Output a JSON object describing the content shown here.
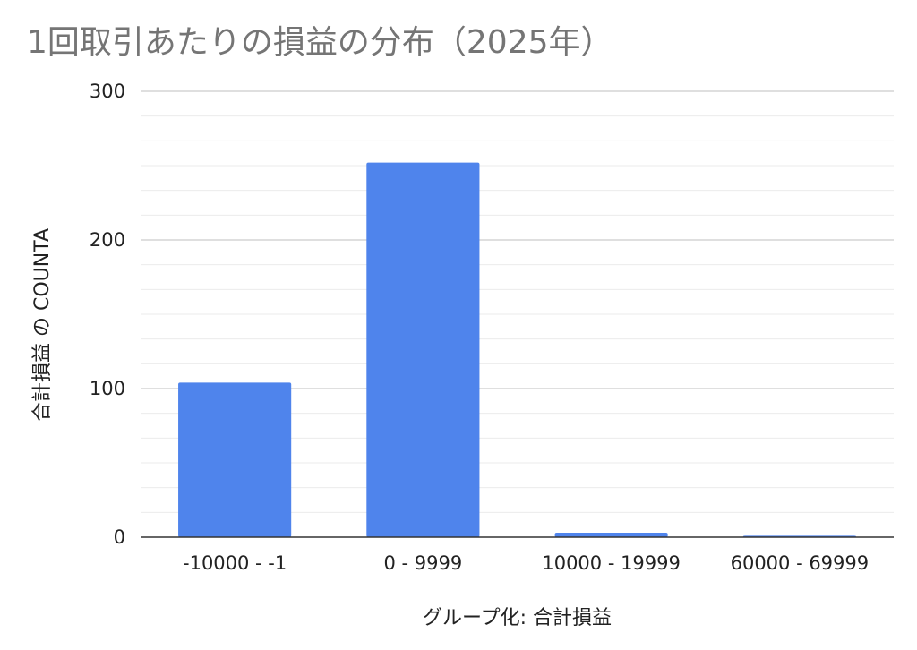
{
  "chart_data": {
    "type": "bar",
    "title": "1回取引あたりの損益の分布（2025年）",
    "xlabel": "グループ化: 合計損益",
    "ylabel": "合計損益 の COUNTA",
    "categories": [
      "-10000 - -1",
      "0 - 9999",
      "10000 - 19999",
      "60000 - 69999"
    ],
    "values": [
      104,
      252,
      3,
      1
    ],
    "ylim": [
      0,
      300
    ],
    "yticks": [
      0,
      100,
      200,
      300
    ],
    "minor_gridlines_per_major": 6,
    "grid": true,
    "legend": "none",
    "bar_color": "#4f84ec",
    "major_grid_color": "#cccccc",
    "minor_grid_color": "#ebebeb",
    "baseline_color": "#333333",
    "title_color": "#757575"
  }
}
